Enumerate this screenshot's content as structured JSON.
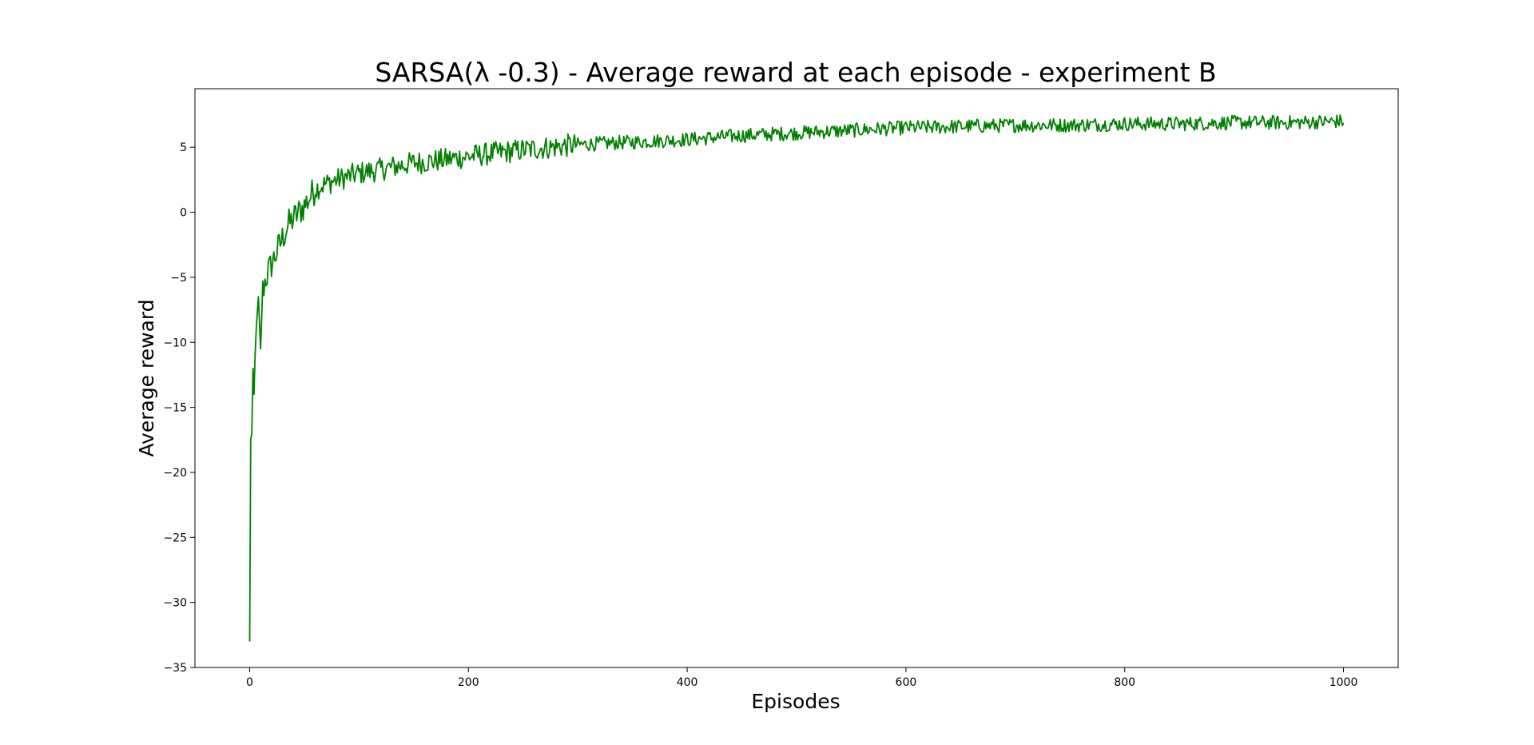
{
  "chart_data": {
    "type": "line",
    "title": "SARSA(λ -0.3) - Average reward at each episode - experiment B",
    "xlabel": "Episodes",
    "ylabel": "Average reward",
    "xlim": [
      -50,
      1050
    ],
    "ylim": [
      -35,
      9.5
    ],
    "xticks": [
      0,
      200,
      400,
      600,
      800,
      1000
    ],
    "yticks": [
      -35,
      -30,
      -25,
      -20,
      -15,
      -10,
      -5,
      0,
      5
    ],
    "grid": false,
    "legend": "none",
    "series": [
      {
        "color": "#008000",
        "x": [
          0,
          1,
          2,
          3,
          4,
          5,
          6,
          8,
          10,
          12,
          15,
          20,
          25,
          30,
          35,
          40,
          45,
          50,
          60,
          70,
          80,
          100,
          120,
          150,
          175,
          200,
          250,
          300,
          350,
          400,
          450,
          500,
          550,
          600,
          650,
          700,
          750,
          800,
          850,
          900,
          950,
          1000
        ],
        "values": [
          -33,
          -17.5,
          -17,
          -12,
          -14,
          -11,
          -9,
          -6.5,
          -10.5,
          -6,
          -5,
          -4,
          -3,
          -2,
          -1,
          -0.5,
          0,
          0.5,
          1.8,
          2.2,
          2.5,
          3.0,
          3.3,
          3.8,
          4.0,
          4.3,
          4.8,
          5.2,
          5.4,
          5.6,
          5.9,
          6.1,
          6.3,
          6.5,
          6.6,
          6.7,
          6.7,
          6.8,
          6.8,
          6.9,
          6.9,
          7.0
        ]
      }
    ]
  }
}
